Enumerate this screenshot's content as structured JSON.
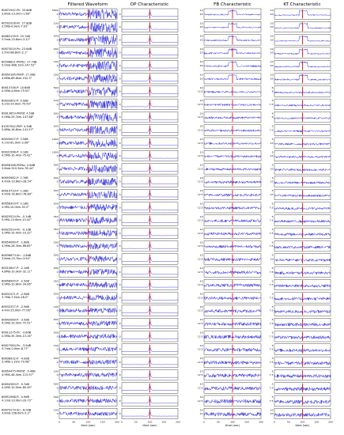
{
  "chart_data": {
    "type": "line",
    "column_titles": [
      "Filtered Waveform",
      "DP Characteristic",
      "FB Characteristic",
      "KT Characteristic"
    ],
    "xlabel": "time (sec)",
    "x_ticks": [
      "0",
      "50",
      "100",
      "150",
      "200"
    ],
    "xlim": [
      0,
      200
    ],
    "rows": [
      {
        "label": [
          "60872942-Pn: 33.6dB",
          "3.8mb-13.2km-1.98°"
        ],
        "pick": 100,
        "y_ticks": {
          "wave": [
            "0",
            "5000"
          ],
          "dp": [
            "0"
          ],
          "fb": [
            "20",
            "10"
          ],
          "kt": [
            "20",
            "10"
          ]
        }
      },
      {
        "label": [
          "60592926-Pn: 27.8dB",
          "3.5Mb-0.9km-7.93°"
        ],
        "pick": 100,
        "y_ticks": {
          "wave": [
            "0",
            "100"
          ],
          "dp": [
            "0"
          ],
          "fb": [
            "20",
            "10"
          ],
          "kt": [
            "20",
            "10"
          ]
        }
      },
      {
        "label": [
          "60683139-P: 25.7dB",
          "3.5mb-23.6km-3.22°"
        ],
        "pick": 100,
        "y_ticks": {
          "wave": [
            "0",
            "500"
          ],
          "dp": [
            "0"
          ],
          "fb": [
            "20",
            "10"
          ],
          "kt": [
            "20",
            "10"
          ]
        }
      },
      {
        "label": [
          "60673019-Pn: 23.6dB",
          "3.5ml-88.8km-2.1°"
        ],
        "pick": 100,
        "y_ticks": {
          "wave": [
            "0",
            "200"
          ],
          "dp": [
            "0"
          ],
          "fb": [
            "20",
            "10"
          ],
          "kt": [
            "20",
            "10"
          ]
        }
      },
      {
        "label": [
          "60598621-PKPbc: 17.7dB",
          "5.0mb-608.1km-147.52°"
        ],
        "pick": 100,
        "y_ticks": {
          "wave": [
            "0",
            "100"
          ],
          "dp": [
            "0"
          ],
          "fb": [
            "20",
            "10"
          ],
          "kt": [
            "20",
            "10"
          ]
        }
      },
      {
        "label": [
          "60650185-PKKP: 17.3dB",
          "4.6Mb-89.8km-152.3°"
        ],
        "pick": 100,
        "y_ticks": {
          "wave": [
            "0",
            "200"
          ],
          "dp": [
            "0"
          ],
          "fb": [
            "20",
            "10"
          ],
          "kt": [
            "20",
            "10"
          ]
        }
      },
      {
        "label": [
          "60613746-P: 10.6dB",
          "4.5Mb-4.8km-75.52°"
        ],
        "pick": 100,
        "y_ticks": {
          "wave": [
            "0",
            "500"
          ],
          "dp": [
            "0"
          ],
          "fb": [
            "12.5",
            "10"
          ],
          "kt": [
            "8",
            "6"
          ]
        }
      },
      {
        "label": [
          "60632852-P: 9.0dB",
          "4.2ml-24.0km-75.59°"
        ],
        "pick": 100,
        "y_ticks": {
          "wave": [
            "0",
            "100"
          ],
          "dp": [
            "0"
          ],
          "fb": [
            "12.5",
            "10"
          ],
          "kt": [
            "7.5",
            "5"
          ]
        }
      },
      {
        "label": [
          "60613653-PKPdf: 4.5dB",
          "5.0Mb-29.7km-147.68°"
        ],
        "pick": 100,
        "y_ticks": {
          "wave": [
            "0",
            "500"
          ],
          "dp": [
            "0"
          ],
          "fb": [
            "12.5",
            "10"
          ],
          "kt": [
            "6",
            "4"
          ]
        }
      },
      {
        "label": [
          "61057942-PKP: 4.3dB",
          "5.8Mb-16.8km-141.57°"
        ],
        "pick": 100,
        "y_ticks": {
          "wave": [
            "0",
            "500"
          ],
          "dp": [
            "0"
          ],
          "fb": [
            "12.5",
            "10"
          ],
          "kt": [
            "7.5",
            "5"
          ]
        }
      },
      {
        "label": [
          "60645007-P: 3.5dB",
          "4.1ml-81.0km-2.08°"
        ],
        "pick": 100,
        "y_ticks": {
          "wave": [
            "0",
            "1000"
          ],
          "dp": [
            "0"
          ],
          "fb": [
            "12.5",
            "10"
          ],
          "kt": [
            "10",
            "5"
          ]
        }
      },
      {
        "label": [
          "60631566-P: 3.1dB",
          "4.5Mb-10.4km-75.42°"
        ],
        "pick": 100,
        "y_ticks": {
          "wave": [
            "0",
            "1000"
          ],
          "dp": [
            "0"
          ],
          "fb": [
            "12.5",
            "10"
          ],
          "kt": [
            "10",
            "5"
          ]
        }
      },
      {
        "label": [
          "60658168-PKPbc: 2.8dB",
          "5.8mb-510.5km-76.44°"
        ],
        "pick": 100,
        "y_ticks": {
          "wave": [
            "0",
            "500"
          ],
          "dp": [
            "0"
          ],
          "fb": [
            "12.5",
            "10"
          ],
          "kt": [
            "10",
            "5"
          ]
        }
      },
      {
        "label": [
          "60693982-P: 2.7dB",
          "4.4mb-10.8km-28.54°"
        ],
        "pick": 100,
        "y_ticks": {
          "wave": [
            "0",
            "500"
          ],
          "dp": [
            "0"
          ],
          "fb": [
            "12.5",
            "10"
          ],
          "kt": [
            "10",
            "5"
          ]
        }
      },
      {
        "label": [
          "60619733-P: 2.3dB",
          "4.9mb-32.8km-76.89°"
        ],
        "pick": 100,
        "y_ticks": {
          "wave": [
            "0",
            "500"
          ],
          "dp": [
            "0"
          ],
          "fb": [
            "12.5",
            "10"
          ],
          "kt": [
            "10",
            "5"
          ]
        }
      },
      {
        "label": [
          "60658303-P: 0.1dB",
          "3.9Ml-10.0km-35.3°"
        ],
        "pick": 100,
        "y_ticks": {
          "wave": [
            "0",
            "500"
          ],
          "dp": [
            "0"
          ],
          "fb": [
            "12.5",
            "10"
          ],
          "kt": [
            "7.5",
            "5"
          ]
        }
      },
      {
        "label": [
          "60625524-Pn: -0.1dB",
          "3.9ML-13.6km-10.42°"
        ],
        "pick": 100,
        "y_ticks": {
          "wave": [
            "0",
            "250"
          ],
          "dp": [
            "0"
          ],
          "fb": [
            "12.5",
            "10"
          ],
          "kt": [
            "7.5",
            "5"
          ]
        }
      },
      {
        "label": [
          "60625524-Pn: -0.1dB",
          "3.9MS-10.4km-10.32°"
        ],
        "pick": 100,
        "y_ticks": {
          "wave": [
            "0",
            "250"
          ],
          "dp": [
            "0"
          ],
          "fb": [
            "12.5",
            "10"
          ],
          "kt": [
            "7.5",
            "5"
          ]
        }
      },
      {
        "label": [
          "60654060-P: -1.6dB",
          "4.9Mb-26.3km-86.85°"
        ],
        "pick": 100,
        "y_ticks": {
          "wave": [
            "0",
            "500"
          ],
          "dp": [
            "0"
          ],
          "fb": [
            "12.5",
            "10"
          ],
          "kt": [
            "7.5",
            "5"
          ]
        }
      },
      {
        "label": [
          "60636873-Sn: -1.8dB",
          "3.8mb-15.7km-3.94°"
        ],
        "pick": 100,
        "y_ticks": {
          "wave": [
            "0",
            "500"
          ],
          "dp": [
            "0"
          ],
          "fb": [
            "12.5",
            "10"
          ],
          "kt": [
            "10",
            "5"
          ]
        }
      },
      {
        "label": [
          "60510847-P: -2.1dB",
          "4.8Mb-10.0km-32.11°"
        ],
        "pick": 100,
        "y_ticks": {
          "wave": [
            "0",
            "500"
          ],
          "dp": [
            "0"
          ],
          "fb": [
            "12.5",
            "10"
          ],
          "kt": [
            "7.5",
            "5"
          ]
        }
      },
      {
        "label": [
          "60658945-P: -2.5dB",
          "3.9MS-10.8km-34.06°"
        ],
        "pick": 100,
        "y_ticks": {
          "wave": [
            "0",
            "250"
          ],
          "dp": [
            "0"
          ],
          "fb": [
            "12.5",
            "10"
          ],
          "kt": [
            "7.5",
            "5"
          ]
        }
      },
      {
        "label": [
          "60632471-P: -2.9dB",
          "3.7Mb-7.5km-28.5°"
        ],
        "pick": 100,
        "y_ticks": {
          "wave": [
            "0",
            "500"
          ],
          "dp": [
            "0"
          ],
          "fb": [
            "12.5",
            "10"
          ],
          "kt": [
            "7.5",
            "5"
          ]
        }
      },
      {
        "label": [
          "60632327-P: -2.9dB",
          "4.4ml-25.0km-77.06°"
        ],
        "pick": 100,
        "y_ticks": {
          "wave": [
            "0",
            "100"
          ],
          "dp": [
            "0"
          ],
          "fb": [
            "12.5",
            "10"
          ],
          "kt": [
            "7.5",
            "5"
          ]
        }
      },
      {
        "label": [
          "60642089-P: -3.5dB",
          "4.2MS-10.0km-72.51°"
        ],
        "pick": 100,
        "y_ticks": {
          "wave": [
            "0",
            "500"
          ],
          "dp": [
            "0"
          ],
          "fb": [
            "12.5",
            "10"
          ],
          "kt": [
            "7.5",
            "5"
          ]
        }
      },
      {
        "label": [
          "60612275-Pn: -3.6dB",
          "4.5Mb-35.3km-13.16°"
        ],
        "pick": 100,
        "y_ticks": {
          "wave": [
            "0",
            "500"
          ],
          "dp": [
            "0"
          ],
          "fb": [
            "12.5",
            "10"
          ],
          "kt": [
            "7.5",
            "5"
          ]
        }
      },
      {
        "label": [
          "60627084-Pn: -3.9dB",
          "3.7mb-0.0km-8.77°"
        ],
        "pick": 100,
        "y_ticks": {
          "wave": [
            "0",
            "100"
          ],
          "dp": [
            "0"
          ],
          "fb": [
            "12.5",
            "10"
          ],
          "kt": [
            "7.5",
            "5"
          ]
        }
      },
      {
        "label": [
          "60638932-P: -4.0dB",
          "3.9Mb-1.2km-79.58°"
        ],
        "pick": 100,
        "y_ticks": {
          "wave": [
            "0",
            "500"
          ],
          "dp": [
            "0"
          ],
          "fb": [
            "12.5",
            "10"
          ],
          "kt": [
            "7.5",
            "5"
          ]
        }
      },
      {
        "label": [
          "60654475-PKPdf: -5.4dB",
          "4.9MS-46.4km-115.97°"
        ],
        "pick": 100,
        "y_ticks": {
          "wave": [
            "0",
            "100"
          ],
          "dp": [
            "0"
          ],
          "fb": [
            "12.5",
            "10"
          ],
          "kt": [
            "7.5",
            "5"
          ]
        }
      },
      {
        "label": [
          "60650363-P: -5.7dB",
          "4.4MS-10.0km-80.49°"
        ],
        "pick": 100,
        "y_ticks": {
          "wave": [
            "0",
            "500"
          ],
          "dp": [
            "0"
          ],
          "fb": [
            "12.5",
            "10"
          ],
          "kt": [
            "7.5",
            "5"
          ]
        }
      },
      {
        "label": [
          "60651968-P: -5.9dB",
          "4.1mb-10.0km-29.72°"
        ],
        "pick": 100,
        "y_ticks": {
          "wave": [
            "0",
            "500"
          ],
          "dp": [
            "0"
          ],
          "fb": [
            "12.5",
            "10"
          ],
          "kt": [
            "7.5",
            "5"
          ]
        }
      },
      {
        "label": [
          "60670270-Sn: -8.0dB",
          "3.6mb-158.6km-3.2°"
        ],
        "pick": 100,
        "y_ticks": {
          "wave": [
            "0",
            "100"
          ],
          "dp": [
            "0"
          ],
          "fb": [
            "20",
            "10"
          ],
          "kt": [
            "20",
            "10"
          ]
        }
      }
    ]
  }
}
